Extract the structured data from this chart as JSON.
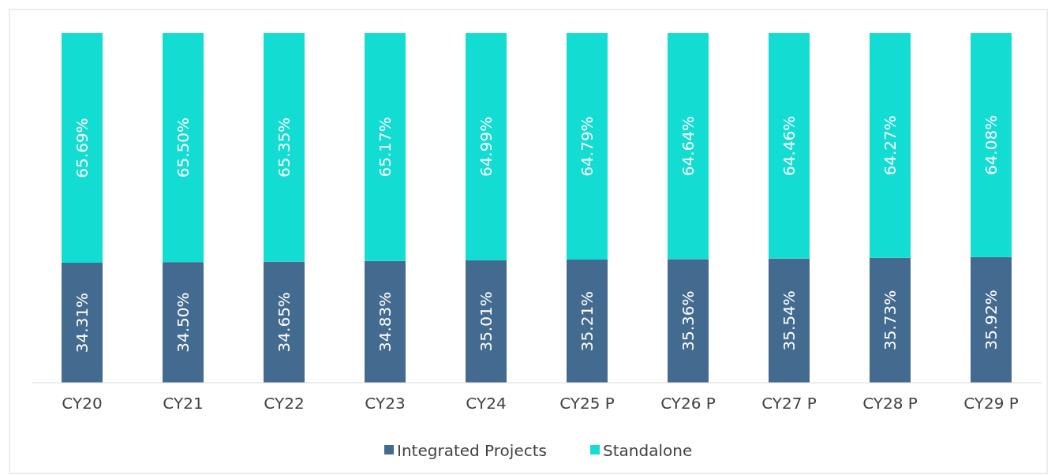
{
  "chart_data": {
    "type": "bar",
    "stacked": true,
    "legend": "bottom",
    "categories": [
      "CY20",
      "CY21",
      "CY22",
      "CY23",
      "CY24",
      "CY25 P",
      "CY26 P",
      "CY27 P",
      "CY28 P",
      "CY29 P"
    ],
    "series": [
      {
        "name": "Integrated Projects",
        "color": "#436b8f",
        "values": [
          34.31,
          34.5,
          34.65,
          34.83,
          35.01,
          35.21,
          35.36,
          35.54,
          35.73,
          35.92
        ],
        "value_labels": [
          "34.31%",
          "34.50%",
          "34.65%",
          "34.83%",
          "35.01%",
          "35.21%",
          "35.36%",
          "35.54%",
          "35.73%",
          "35.92%"
        ]
      },
      {
        "name": "Standalone",
        "color": "#13dcd3",
        "values": [
          65.69,
          65.5,
          65.35,
          65.17,
          64.99,
          64.79,
          64.64,
          64.46,
          64.27,
          64.08
        ],
        "value_labels": [
          "65.69%",
          "65.50%",
          "65.35%",
          "65.17%",
          "64.99%",
          "64.79%",
          "64.64%",
          "64.46%",
          "64.27%",
          "64.08%"
        ]
      }
    ]
  }
}
